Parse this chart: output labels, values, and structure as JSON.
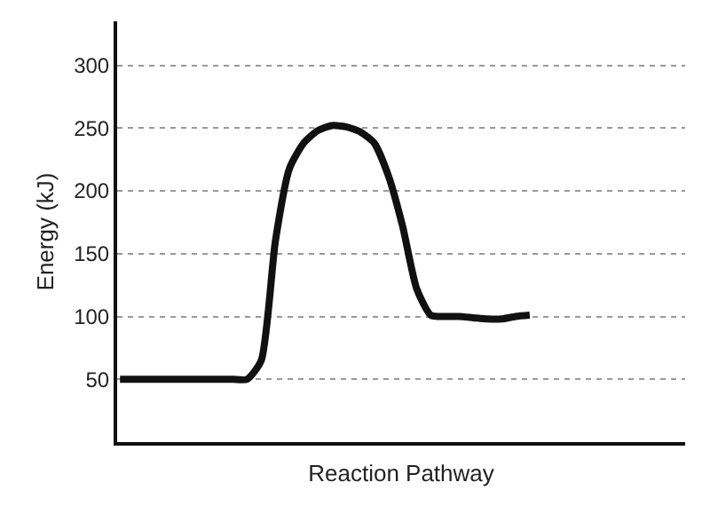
{
  "chart_data": {
    "type": "line",
    "xlabel": "Reaction Pathway",
    "ylabel": "Energy (kJ)",
    "categories": [
      null,
      null,
      null,
      null,
      null,
      null,
      null,
      null,
      null,
      null,
      null,
      null,
      null,
      null,
      null,
      null,
      null,
      null,
      null,
      null,
      null,
      null,
      null,
      null,
      null,
      null,
      null,
      null,
      null,
      null,
      null,
      null,
      null,
      null,
      null,
      null,
      null,
      null,
      null,
      null,
      null
    ],
    "series": [
      {
        "color": "#111111",
        "values": [
          50,
          50,
          50,
          50,
          50,
          50,
          50,
          50,
          50,
          50,
          65,
          160,
          218,
          238,
          248,
          252,
          251,
          247,
          238,
          212,
          172,
          122,
          101,
          100,
          100,
          99,
          98,
          98,
          100,
          101,
          null,
          null,
          null,
          null,
          null,
          null,
          null,
          null,
          null,
          null,
          null
        ]
      }
    ],
    "ylim": [
      0,
      335
    ],
    "yticks": [
      50,
      100,
      150,
      200,
      250,
      300
    ],
    "grid": "y",
    "legend": false,
    "line_style": "solid",
    "marker": "none",
    "tick_labels": "y"
  }
}
